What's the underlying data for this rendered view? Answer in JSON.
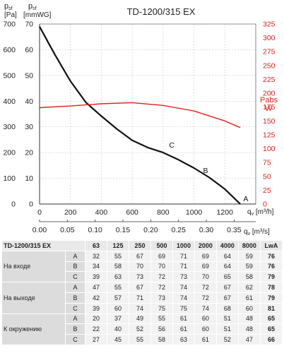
{
  "chart_data": {
    "type": "line",
    "title": "TD-1200/315 EX",
    "y_left": {
      "label_sym": "psf",
      "label_sub": "",
      "unit": "[Pa]",
      "ticks": [
        0,
        100,
        200,
        300,
        400,
        500,
        600,
        700
      ],
      "range": [
        0,
        700
      ]
    },
    "y_mid": {
      "label_sym": "psf",
      "unit": "[mmWG]",
      "ticks": [
        0,
        10,
        20,
        30,
        40,
        50,
        60,
        70
      ]
    },
    "y_right": {
      "label": "Pabs",
      "unit": "W",
      "ticks": [
        0,
        25,
        50,
        75,
        100,
        125,
        150,
        175,
        200,
        225,
        250,
        275,
        300,
        325
      ],
      "range": [
        0,
        325
      ],
      "color": "#e0201b"
    },
    "x_main": {
      "ticks": [
        0,
        200,
        400,
        600,
        800,
        1000,
        1200
      ],
      "range": [
        0,
        1400
      ],
      "label": "qv [m³/h]"
    },
    "x_secondary": {
      "ticks": [
        "0.00",
        "0.05",
        "0.10",
        "0.15",
        "0.20",
        "0.25",
        "0.30",
        "0.35"
      ],
      "label": "qv [m³/s]"
    },
    "series": [
      {
        "name": "",
        "role": "pressure",
        "color": "#111111",
        "x": [
          0,
          50,
          100,
          200,
          300,
          400,
          500,
          600,
          700,
          800,
          900,
          1000,
          1100,
          1200,
          1300
        ],
        "y": [
          690,
          635,
          580,
          478,
          395,
          342,
          292,
          248,
          220,
          200,
          172,
          140,
          103,
          58,
          0
        ]
      },
      {
        "name": "",
        "role": "power",
        "color": "#e0201b",
        "x": [
          0,
          200,
          400,
          600,
          800,
          1000,
          1200,
          1300
        ],
        "y": [
          174,
          177,
          181,
          183,
          178,
          168,
          150,
          138
        ]
      }
    ],
    "annotations": [
      {
        "text": "A",
        "x": 1310,
        "y": 0
      },
      {
        "text": "B",
        "x": 1050,
        "y": 110
      },
      {
        "text": "C",
        "x": 830,
        "y": 208
      }
    ]
  },
  "table": {
    "model": "TD-1200/315 EX",
    "headers": [
      "63",
      "125",
      "250",
      "500",
      "1000",
      "2000",
      "4000",
      "8000",
      "LwA"
    ],
    "groups": [
      {
        "name": "На входе",
        "rows": [
          {
            "label": "A",
            "values": [
              "32",
              "55",
              "67",
              "69",
              "71",
              "69",
              "64",
              "59",
              "76"
            ]
          },
          {
            "label": "B",
            "values": [
              "34",
              "58",
              "70",
              "70",
              "71",
              "69",
              "64",
              "59",
              "76"
            ]
          },
          {
            "label": "C",
            "values": [
              "39",
              "63",
              "73",
              "72",
              "73",
              "70",
              "65",
              "58",
              "79"
            ]
          }
        ]
      },
      {
        "name": "На выходе",
        "rows": [
          {
            "label": "A",
            "values": [
              "47",
              "55",
              "67",
              "72",
              "74",
              "72",
              "67",
              "62",
              "78"
            ]
          },
          {
            "label": "B",
            "values": [
              "42",
              "57",
              "71",
              "73",
              "74",
              "72",
              "67",
              "61",
              "79"
            ]
          },
          {
            "label": "C",
            "values": [
              "39",
              "60",
              "74",
              "75",
              "75",
              "74",
              "68",
              "60",
              "81"
            ]
          }
        ]
      },
      {
        "name": "К окружению",
        "rows": [
          {
            "label": "A",
            "values": [
              "20",
              "37",
              "49",
              "55",
              "61",
              "60",
              "51",
              "48",
              "65"
            ]
          },
          {
            "label": "B",
            "values": [
              "22",
              "40",
              "52",
              "56",
              "61",
              "60",
              "51",
              "48",
              "65"
            ]
          },
          {
            "label": "C",
            "values": [
              "27",
              "45",
              "55",
              "58",
              "63",
              "61",
              "52",
              "47",
              "66"
            ]
          }
        ]
      }
    ]
  }
}
